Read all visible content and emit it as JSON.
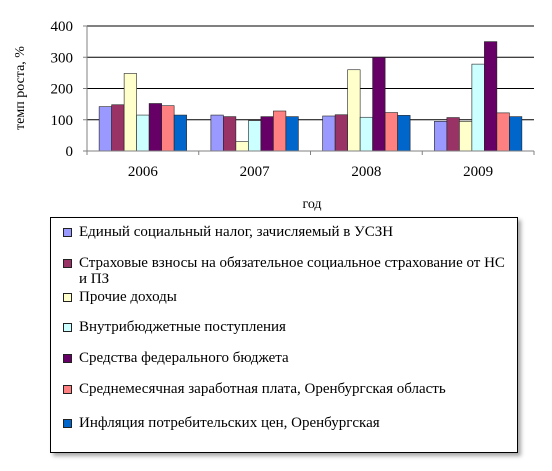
{
  "chart_data": {
    "type": "bar",
    "xlabel": "год",
    "ylabel": "темп роста, %",
    "ylim": [
      0,
      400
    ],
    "yticks": [
      0,
      100,
      200,
      300,
      400
    ],
    "categories": [
      "2006",
      "2007",
      "2008",
      "2009"
    ],
    "grid": "horizontal",
    "legend_position": "bottom",
    "series": [
      {
        "name": "Единый социальный налог, зачисляемый в УСЗН",
        "color": "#9999ff",
        "values": [
          142,
          115,
          112,
          95
        ]
      },
      {
        "name": "Страховые взносы на обязательное социальное страхование от НС и ПЗ",
        "color": "#993366",
        "values": [
          148,
          110,
          116,
          107
        ]
      },
      {
        "name": "Прочие доходы",
        "color": "#ffffcc",
        "values": [
          248,
          30,
          260,
          95
        ]
      },
      {
        "name": "Внутрибюджетные поступления",
        "color": "#ccffff",
        "values": [
          115,
          97,
          108,
          278
        ]
      },
      {
        "name": "Средства федерального бюджета",
        "color": "#660066",
        "values": [
          152,
          110,
          300,
          350
        ]
      },
      {
        "name": "Среднемесячная заработная плата, Оренбургская область",
        "color": "#ff8080",
        "values": [
          145,
          128,
          123,
          122
        ]
      },
      {
        "name": "Инфляция потребительских цен, Оренбургская",
        "color": "#0066cc",
        "values": [
          115,
          110,
          114,
          110
        ]
      }
    ]
  }
}
